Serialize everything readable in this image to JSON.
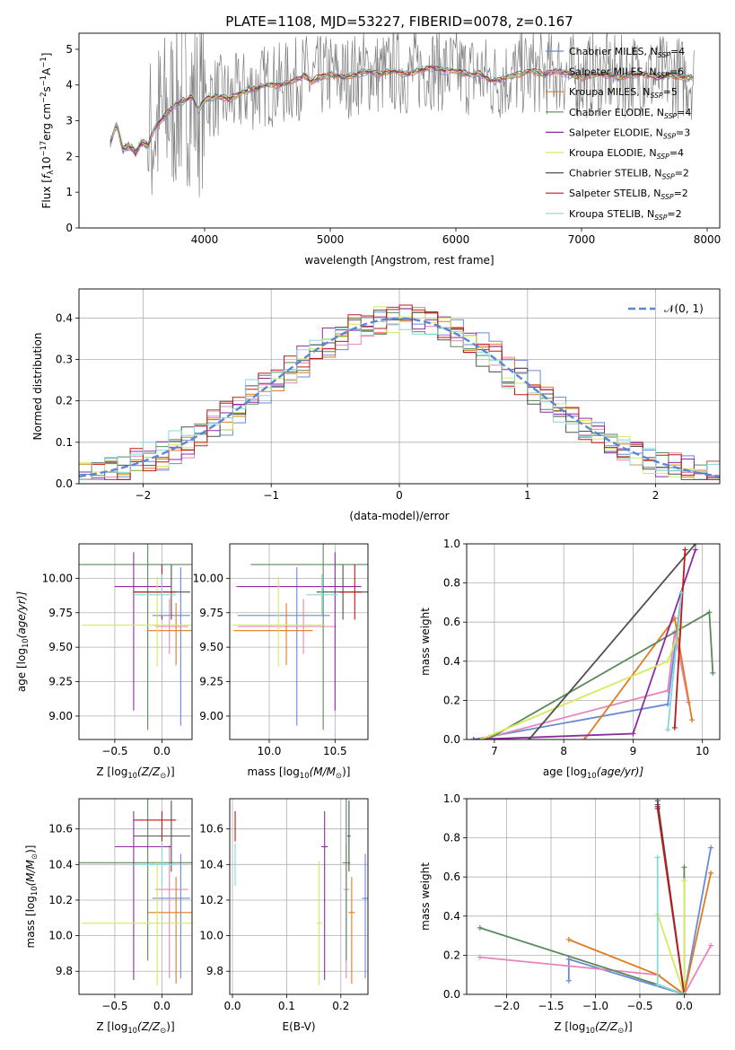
{
  "figure_title": "PLATE=1108, MJD=53227, FIBERID=0078, z=0.167",
  "series_styles": [
    {
      "name": "Chabrier MILES, N$_{SSP}$=4",
      "label_main": "Chabrier MILES, N",
      "label_sub": "SSP",
      "label_tail": "=4",
      "color": "#6a8ad8"
    },
    {
      "name": "Salpeter MILES, N$_{SSP}$=6",
      "label_main": "Salpeter MILES, N",
      "label_sub": "SSP",
      "label_tail": "=6",
      "color": "#e884b8"
    },
    {
      "name": "Kroupa MILES, N$_{SSP}$=5",
      "label_main": "Kroupa MILES, N",
      "label_sub": "SSP",
      "label_tail": "=5",
      "color": "#e07b20"
    },
    {
      "name": "Chabrier ELODIE, N$_{SSP}$=4",
      "label_main": "Chabrier ELODIE, N",
      "label_sub": "SSP",
      "label_tail": "=4",
      "color": "#5a8a5a"
    },
    {
      "name": "Salpeter ELODIE, N$_{SSP}$=3",
      "label_main": "Salpeter ELODIE, N",
      "label_sub": "SSP",
      "label_tail": "=3",
      "color": "#8e2b9e"
    },
    {
      "name": "Kroupa ELODIE, N$_{SSP}$=4",
      "label_main": "Kroupa ELODIE, N",
      "label_sub": "SSP",
      "label_tail": "=4",
      "color": "#d4ea5c"
    },
    {
      "name": "Chabrier STELIB, N$_{SSP}$=2",
      "label_main": "Chabrier STELIB, N",
      "label_sub": "SSP",
      "label_tail": "=2",
      "color": "#505050"
    },
    {
      "name": "Salpeter STELIB, N$_{SSP}$=2",
      "label_main": "Salpeter STELIB, N",
      "label_sub": "SSP",
      "label_tail": "=2",
      "color": "#c01818"
    },
    {
      "name": "Kroupa STELIB, N$_{SSP}$=2",
      "label_main": "Kroupa STELIB, N",
      "label_sub": "SSP",
      "label_tail": "=2",
      "color": "#86d8d8"
    }
  ],
  "chart_data": [
    {
      "id": "spectrum",
      "type": "line",
      "ylabel_main": "Flux [",
      "ylabel_f": "f",
      "ylabel_fsub": "λ",
      "ylabel_rest": "10",
      "ylabel_exp": "−17",
      "ylabel_units": " erg cm",
      "ylabel_e2": "−2",
      "ylabel_s": " s",
      "ylabel_e1": "−1",
      "ylabel_A": " A",
      "ylabel_e3": "−1",
      "ylabel_end": "]",
      "xlabel": "wavelength [Angstrom, rest frame]",
      "xlim": [
        3000,
        8100
      ],
      "ylim": [
        0,
        5.45
      ],
      "xticks": [
        "4000",
        "5000",
        "6000",
        "7000",
        "8000"
      ],
      "yticks": [
        "0",
        "1",
        "2",
        "3",
        "4",
        "5"
      ],
      "data_color": "#808080",
      "model_color": "#86d8d8",
      "grid": false,
      "legend": "top-right",
      "spectrum_x": [
        3250,
        3300,
        3350,
        3400,
        3450,
        3500,
        3550,
        3600,
        3650,
        3700,
        3750,
        3800,
        3850,
        3900,
        3950,
        4000,
        4100,
        4200,
        4300,
        4400,
        4500,
        4600,
        4700,
        4800,
        4850,
        4900,
        5000,
        5100,
        5200,
        5300,
        5400,
        5500,
        5600,
        5700,
        5800,
        5900,
        6000,
        6100,
        6200,
        6300,
        6400,
        6500,
        6600,
        6700,
        6800,
        6900,
        7000,
        7100,
        7200,
        7300,
        7400,
        7500,
        7600,
        7700,
        7800,
        7900
      ],
      "spectrum_y": [
        2.4,
        2.9,
        2.2,
        2.3,
        2.1,
        2.4,
        2.3,
        2.8,
        3.0,
        3.2,
        3.4,
        3.5,
        3.6,
        3.7,
        3.3,
        3.6,
        3.7,
        3.6,
        3.8,
        3.9,
        4.0,
        4.0,
        4.1,
        4.3,
        4.1,
        4.2,
        4.3,
        4.2,
        4.3,
        4.4,
        4.3,
        4.4,
        4.3,
        4.4,
        4.5,
        4.4,
        4.4,
        4.3,
        4.3,
        4.1,
        4.2,
        4.3,
        4.4,
        4.3,
        4.4,
        4.3,
        4.2,
        4.3,
        4.3,
        4.2,
        4.3,
        4.3,
        4.2,
        4.3,
        4.2,
        4.2
      ]
    },
    {
      "id": "residuals",
      "type": "histogram",
      "xlabel": "(data-model)/error",
      "ylabel": "Normed distribution",
      "xlim": [
        -2.5,
        2.5
      ],
      "ylim": [
        0,
        0.47
      ],
      "xticks": [
        "−2",
        "−1",
        "0",
        "1",
        "2"
      ],
      "yticks": [
        "0.0",
        "0.1",
        "0.2",
        "0.3",
        "0.4"
      ],
      "grid": true,
      "legend": "top-right",
      "normal_label": "𝒩(0, 1)",
      "normal_color": "#5b86d1"
    },
    {
      "id": "age-Z",
      "type": "errorbar",
      "xlabel_main": "Z [log",
      "xlabel_sub": "10",
      "xlabel_tail": "(Z/Z",
      "xlabel_sun": "⊙",
      "xlabel_end": ")]",
      "ylabel_main": "age  [log",
      "ylabel_sub": "10",
      "ylabel_tail": "(age/yr)]",
      "xlim": [
        -0.88,
        0.32
      ],
      "ylim": [
        8.83,
        10.25
      ],
      "xticks": [
        "−0.5",
        "0.0"
      ],
      "yticks": [
        "9.00",
        "9.25",
        "9.50",
        "9.75",
        "10.00"
      ],
      "grid": true
    },
    {
      "id": "age-mass",
      "type": "errorbar",
      "xlabel_main": "mass [log",
      "xlabel_sub": "10",
      "xlabel_tail": "(M/M",
      "xlabel_sun": "⊙",
      "xlabel_end": ")]",
      "xlim": [
        9.7,
        10.75
      ],
      "ylim": [
        8.83,
        10.25
      ],
      "xticks": [
        "10.0",
        "10.5"
      ],
      "yticks": [
        "9.00",
        "9.25",
        "9.50",
        "9.75",
        "10.00"
      ],
      "grid": true
    },
    {
      "id": "weight-age",
      "type": "line",
      "xlabel_main": "age  [log",
      "xlabel_sub": "10",
      "xlabel_tail": "(age/yr)]",
      "ylabel": "mass weight",
      "xlim": [
        6.6,
        10.25
      ],
      "ylim": [
        0,
        1.0
      ],
      "xticks": [
        "7",
        "8",
        "9",
        "10"
      ],
      "yticks": [
        "0.0",
        "0.2",
        "0.4",
        "0.6",
        "0.8",
        "1.0"
      ],
      "grid": true
    },
    {
      "id": "mass-Z",
      "type": "errorbar",
      "xlabel_main": "Z [log",
      "xlabel_sub": "10",
      "xlabel_tail": "(Z/Z",
      "xlabel_sun": "⊙",
      "xlabel_end": ")]",
      "ylabel_main": "mass [log",
      "ylabel_sub": "10",
      "ylabel_tail": "(M/M",
      "ylabel_sun": "⊙",
      "ylabel_end": ")]",
      "xlim": [
        -0.88,
        0.32
      ],
      "ylim": [
        9.67,
        10.77
      ],
      "xticks": [
        "−0.5",
        "0.0"
      ],
      "yticks": [
        "9.8",
        "10.0",
        "10.2",
        "10.4",
        "10.6"
      ],
      "grid": true
    },
    {
      "id": "mass-EBV",
      "type": "errorbar",
      "xlabel": "E(B-V)",
      "xlim": [
        -0.005,
        0.25
      ],
      "ylim": [
        9.67,
        10.77
      ],
      "xticks": [
        "0.0",
        "0.1",
        "0.2"
      ],
      "yticks": [
        "9.8",
        "10.0",
        "10.2",
        "10.4",
        "10.6"
      ],
      "grid": true
    },
    {
      "id": "weight-Z",
      "type": "line",
      "xlabel_main": "Z [log",
      "xlabel_sub": "10",
      "xlabel_tail": "(Z/Z",
      "xlabel_sun": "⊙",
      "xlabel_end": ")]",
      "ylabel": "mass weight",
      "xlim": [
        -2.45,
        0.4
      ],
      "ylim": [
        0,
        1.0
      ],
      "xticks": [
        "−2.0",
        "−1.5",
        "−1.0",
        "−0.5",
        "0.0"
      ],
      "yticks": [
        "0.0",
        "0.2",
        "0.4",
        "0.6",
        "0.8",
        "1.0"
      ],
      "grid": true
    }
  ],
  "fits": [
    {
      "Z": 0.2,
      "Zerr": [
        0.3,
        0.1
      ],
      "age": 9.73,
      "ageerr": [
        0.8,
        0.35
      ],
      "mass": 10.21,
      "masserr": [
        0.45,
        0.25
      ],
      "ebv": 0.245,
      "ebverr": 0.06,
      "w_age": [
        [
          6.7,
          0.0
        ],
        [
          9.5,
          0.18
        ],
        [
          9.7,
          0.75
        ]
      ],
      "w_Z": [
        [
          -1.3,
          0.07
        ],
        [
          -1.3,
          0.18
        ],
        [
          0.0,
          0.0
        ],
        [
          0.3,
          0.75
        ]
      ]
    },
    {
      "Z": 0.08,
      "Zerr": [
        0.15,
        0.2
      ],
      "age": 9.65,
      "ageerr": [
        0.2,
        0.2
      ],
      "mass": 10.26,
      "masserr": [
        0.5,
        0.25
      ],
      "ebv": 0.21,
      "ebverr": 0.05,
      "w_age": [
        [
          6.8,
          0.0
        ],
        [
          9.5,
          0.25
        ],
        [
          9.6,
          0.55
        ],
        [
          9.8,
          0.19
        ]
      ],
      "w_Z": [
        [
          -2.3,
          0.19
        ],
        [
          -0.3,
          0.1
        ],
        [
          0.0,
          0.0
        ],
        [
          0.3,
          0.25
        ]
      ]
    },
    {
      "Z": 0.15,
      "Zerr": [
        0.3,
        0.3
      ],
      "age": 9.62,
      "ageerr": [
        0.25,
        0.2
      ],
      "mass": 10.13,
      "masserr": [
        0.4,
        0.2
      ],
      "ebv": 0.22,
      "ebverr": 0.06,
      "w_age": [
        [
          8.3,
          0.0
        ],
        [
          9.6,
          0.62
        ],
        [
          9.85,
          0.1
        ]
      ],
      "w_Z": [
        [
          -1.3,
          0.28
        ],
        [
          -0.3,
          0.1
        ],
        [
          0.0,
          0.0
        ],
        [
          0.3,
          0.62
        ]
      ]
    },
    {
      "Z": -0.15,
      "Zerr": [
        0.8,
        0.5
      ],
      "age": 10.1,
      "ageerr": [
        1.2,
        0.4
      ],
      "mass": 10.41,
      "masserr": [
        0.55,
        0.4
      ],
      "ebv": 0.21,
      "ebverr": 0.07,
      "w_age": [
        [
          6.9,
          0.0
        ],
        [
          10.1,
          0.65
        ],
        [
          10.15,
          0.34
        ]
      ],
      "w_Z": [
        [
          -2.3,
          0.34
        ],
        [
          -0.3,
          0.05
        ],
        [
          0.0,
          0.0
        ],
        [
          0.0,
          0.65
        ]
      ]
    },
    {
      "Z": -0.3,
      "Zerr": [
        0.2,
        0.4
      ],
      "age": 9.94,
      "ageerr": [
        0.9,
        0.25
      ],
      "mass": 10.5,
      "masserr": [
        0.75,
        0.2
      ],
      "ebv": 0.17,
      "ebverr": 0.06,
      "w_age": [
        [
          6.7,
          0.0
        ],
        [
          9.0,
          0.03
        ],
        [
          9.9,
          0.97
        ]
      ],
      "w_Z": [
        [
          -0.3,
          0.96
        ],
        [
          -0.3,
          0.97
        ]
      ]
    },
    {
      "Z": -0.05,
      "Zerr": [
        0.8,
        0.4
      ],
      "age": 9.66,
      "ageerr": [
        0.3,
        0.35
      ],
      "mass": 10.07,
      "masserr": [
        0.35,
        0.35
      ],
      "ebv": 0.16,
      "ebverr": 0.05,
      "w_age": [
        [
          6.8,
          0.0
        ],
        [
          9.5,
          0.4
        ],
        [
          9.7,
          0.58
        ]
      ],
      "w_Z": [
        [
          -0.3,
          0.41
        ],
        [
          0.0,
          0.0
        ],
        [
          0.0,
          0.58
        ]
      ]
    },
    {
      "Z": 0.1,
      "Zerr": [
        0.4,
        0.2
      ],
      "age": 9.9,
      "ageerr": [
        0.2,
        0.2
      ],
      "mass": 10.56,
      "masserr": [
        0.2,
        0.2
      ],
      "ebv": 0.215,
      "ebverr": 0.03,
      "w_age": [
        [
          7.5,
          0.0
        ],
        [
          9.9,
          1.0
        ]
      ],
      "w_Z": [
        [
          -0.3,
          0.99
        ],
        [
          0.0,
          0.0
        ]
      ]
    },
    {
      "Z": 0.0,
      "Zerr": [
        0.3,
        0.15
      ],
      "age": 9.9,
      "ageerr": [
        0.2,
        0.2
      ],
      "mass": 10.65,
      "masserr": [
        0.12,
        0.05
      ],
      "ebv": 0.005,
      "ebverr": 0.0,
      "w_age": [
        [
          9.6,
          0.06
        ],
        [
          9.75,
          0.97
        ]
      ],
      "w_Z": [
        [
          -0.3,
          0.95
        ],
        [
          0.0,
          0.0
        ]
      ]
    },
    {
      "Z": 0.0,
      "Zerr": [
        0.3,
        0.15
      ],
      "age": 9.88,
      "ageerr": [
        0.15,
        0.15
      ],
      "mass": 10.4,
      "masserr": [
        0.12,
        0.12
      ],
      "ebv": 0.005,
      "ebverr": 0.0,
      "w_age": [
        [
          9.5,
          0.05
        ],
        [
          9.7,
          0.75
        ]
      ],
      "w_Z": [
        [
          -0.3,
          0.7
        ],
        [
          -0.3,
          0.05
        ],
        [
          0.0,
          0.0
        ]
      ]
    }
  ]
}
